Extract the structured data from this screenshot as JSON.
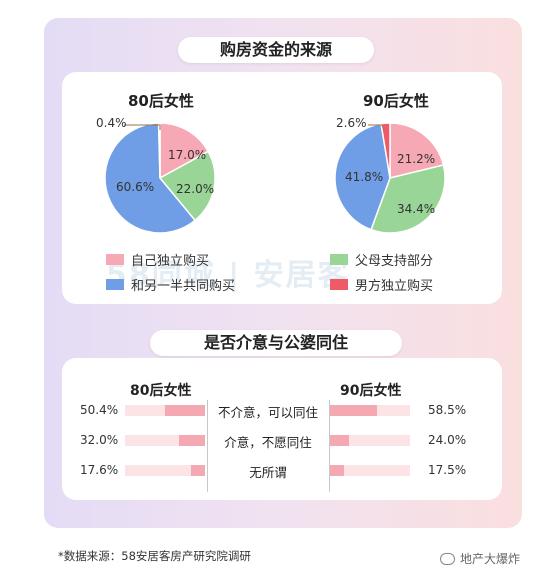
{
  "section1_title": "购房资金的来源",
  "section2_title": "是否介意与公婆同住",
  "watermark": "58同城 | 安居客",
  "colors": {
    "pink": "#f6a8b4",
    "green": "#98d596",
    "blue": "#6f9ee6",
    "red": "#ee5a66",
    "bar_fill": "#f4a9b2",
    "bar_track": "#fbe3e6"
  },
  "chart_data": [
    {
      "type": "pie",
      "title": "80后女性",
      "slices": [
        {
          "label": "自己独立购买",
          "value": 17.0,
          "display": "17.0%",
          "color": "#f6a8b4"
        },
        {
          "label": "父母支持部分",
          "value": 22.0,
          "display": "22.0%",
          "color": "#98d596"
        },
        {
          "label": "和另一半共同购买",
          "value": 60.6,
          "display": "60.6%",
          "color": "#6f9ee6"
        },
        {
          "label": "男方独立购买",
          "value": 0.4,
          "display": "0.4%",
          "color": "#ee5a66"
        }
      ]
    },
    {
      "type": "pie",
      "title": "90后女性",
      "slices": [
        {
          "label": "自己独立购买",
          "value": 21.2,
          "display": "21.2%",
          "color": "#f6a8b4"
        },
        {
          "label": "父母支持部分",
          "value": 34.4,
          "display": "34.4%",
          "color": "#98d596"
        },
        {
          "label": "和另一半共同购买",
          "value": 41.8,
          "display": "41.8%",
          "color": "#6f9ee6"
        },
        {
          "label": "男方独立购买",
          "value": 2.6,
          "display": "2.6%",
          "color": "#ee5a66"
        }
      ]
    },
    {
      "type": "bar",
      "categories": [
        "不介意，可以同住",
        "介意，不愿同住",
        "无所谓"
      ],
      "series": [
        {
          "name": "80后女性",
          "values": [
            50.4,
            32.0,
            17.6
          ],
          "display": [
            "50.4%",
            "32.0%",
            "17.6%"
          ]
        },
        {
          "name": "90后女性",
          "values": [
            58.5,
            24.0,
            17.5
          ],
          "display": [
            "58.5%",
            "24.0%",
            "17.5%"
          ]
        }
      ]
    }
  ],
  "legend": [
    {
      "label": "自己独立购买",
      "color": "#f6a8b4"
    },
    {
      "label": "父母支持部分",
      "color": "#98d596"
    },
    {
      "label": "和另一半共同购买",
      "color": "#6f9ee6"
    },
    {
      "label": "男方独立购买",
      "color": "#ee5a66"
    }
  ],
  "footnote": "*数据来源：58安居客房产研究院调研",
  "wechat_label": "地产大爆炸"
}
